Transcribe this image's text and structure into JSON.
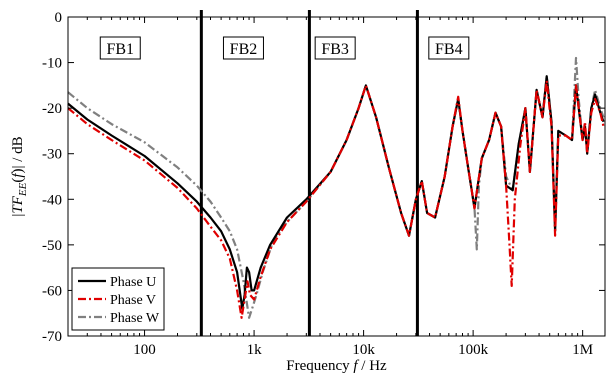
{
  "chart_data": {
    "type": "line",
    "xlabel": "Frequency f / Hz",
    "ylabel": "|TF_EE(f)| / dB",
    "xscale": "log",
    "xlim": [
      20,
      1600000
    ],
    "ylim": [
      -70,
      0
    ],
    "grid": false,
    "legend_position": "bottom-left",
    "xticks": [
      {
        "value": 100,
        "label": "100"
      },
      {
        "value": 1000,
        "label": "1k"
      },
      {
        "value": 10000,
        "label": "10k"
      },
      {
        "value": 100000,
        "label": "100k"
      },
      {
        "value": 1000000,
        "label": "1M"
      }
    ],
    "yticks": [
      {
        "value": 0,
        "label": "0"
      },
      {
        "value": -10,
        "label": "-10"
      },
      {
        "value": -20,
        "label": "-20"
      },
      {
        "value": -30,
        "label": "-30"
      },
      {
        "value": -40,
        "label": "-40"
      },
      {
        "value": -50,
        "label": "-50"
      },
      {
        "value": -60,
        "label": "-60"
      },
      {
        "value": -70,
        "label": "-70"
      }
    ],
    "band_dividers": [
      330,
      3200,
      31000
    ],
    "band_labels": [
      {
        "label": "FB1",
        "x": 60
      },
      {
        "label": "FB2",
        "x": 800
      },
      {
        "label": "FB3",
        "x": 5500
      },
      {
        "label": "FB4",
        "x": 60000
      }
    ],
    "series": [
      {
        "name": "Phase U",
        "color": "#000000",
        "dash": "solid",
        "points": [
          [
            20,
            -19
          ],
          [
            30,
            -22.5
          ],
          [
            50,
            -26
          ],
          [
            100,
            -30.5
          ],
          [
            200,
            -36.5
          ],
          [
            300,
            -40.5
          ],
          [
            400,
            -44
          ],
          [
            500,
            -47
          ],
          [
            600,
            -51
          ],
          [
            700,
            -56
          ],
          [
            780,
            -64
          ],
          [
            820,
            -61
          ],
          [
            860,
            -55
          ],
          [
            900,
            -56
          ],
          [
            950,
            -60
          ],
          [
            1000,
            -60
          ],
          [
            1150,
            -55
          ],
          [
            1400,
            -50
          ],
          [
            2000,
            -44
          ],
          [
            3000,
            -40
          ],
          [
            5000,
            -34
          ],
          [
            7000,
            -27
          ],
          [
            9000,
            -20
          ],
          [
            10500,
            -15
          ],
          [
            13000,
            -22
          ],
          [
            17000,
            -33
          ],
          [
            22000,
            -43
          ],
          [
            26000,
            -48
          ],
          [
            30000,
            -40
          ],
          [
            34000,
            -36
          ],
          [
            38000,
            -43
          ],
          [
            45000,
            -44
          ],
          [
            55000,
            -35
          ],
          [
            65000,
            -24
          ],
          [
            73000,
            -18
          ],
          [
            80000,
            -25
          ],
          [
            90000,
            -33
          ],
          [
            97000,
            -38
          ],
          [
            103000,
            -42
          ],
          [
            110000,
            -37
          ],
          [
            120000,
            -31
          ],
          [
            140000,
            -27
          ],
          [
            160000,
            -21
          ],
          [
            180000,
            -24
          ],
          [
            200000,
            -37
          ],
          [
            230000,
            -38
          ],
          [
            260000,
            -28
          ],
          [
            300000,
            -20
          ],
          [
            330000,
            -34
          ],
          [
            380000,
            -16
          ],
          [
            430000,
            -22
          ],
          [
            470000,
            -13
          ],
          [
            520000,
            -23
          ],
          [
            560000,
            -47
          ],
          [
            600000,
            -25
          ],
          [
            700000,
            -26
          ],
          [
            800000,
            -27
          ],
          [
            870000,
            -15
          ],
          [
            920000,
            -20
          ],
          [
            1000000,
            -27
          ],
          [
            1050000,
            -24
          ],
          [
            1100000,
            -30
          ],
          [
            1200000,
            -20
          ],
          [
            1300000,
            -17
          ],
          [
            1450000,
            -21
          ],
          [
            1550000,
            -23
          ]
        ]
      },
      {
        "name": "Phase V",
        "color": "#e00000",
        "dash": "8,3,2,3",
        "points": [
          [
            20,
            -20
          ],
          [
            30,
            -23.5
          ],
          [
            50,
            -27
          ],
          [
            100,
            -31.5
          ],
          [
            200,
            -37.5
          ],
          [
            300,
            -42
          ],
          [
            400,
            -46
          ],
          [
            500,
            -49
          ],
          [
            600,
            -53
          ],
          [
            700,
            -60
          ],
          [
            770,
            -66
          ],
          [
            820,
            -62
          ],
          [
            870,
            -58
          ],
          [
            920,
            -61
          ],
          [
            1000,
            -62
          ],
          [
            1150,
            -57
          ],
          [
            1400,
            -51
          ],
          [
            2000,
            -45
          ],
          [
            3000,
            -40.5
          ],
          [
            5000,
            -34
          ],
          [
            7000,
            -27
          ],
          [
            9000,
            -20
          ],
          [
            10500,
            -15
          ],
          [
            13000,
            -22
          ],
          [
            17000,
            -33
          ],
          [
            22000,
            -43
          ],
          [
            26000,
            -48
          ],
          [
            30000,
            -40
          ],
          [
            34000,
            -36
          ],
          [
            38000,
            -43
          ],
          [
            45000,
            -44
          ],
          [
            55000,
            -35
          ],
          [
            65000,
            -24
          ],
          [
            73000,
            -17.5
          ],
          [
            80000,
            -25
          ],
          [
            90000,
            -33
          ],
          [
            97000,
            -38
          ],
          [
            103000,
            -42
          ],
          [
            110000,
            -37
          ],
          [
            120000,
            -31
          ],
          [
            140000,
            -27
          ],
          [
            160000,
            -21
          ],
          [
            180000,
            -24
          ],
          [
            200000,
            -37
          ],
          [
            215000,
            -50
          ],
          [
            225000,
            -59
          ],
          [
            240000,
            -40
          ],
          [
            270000,
            -28
          ],
          [
            300000,
            -20
          ],
          [
            330000,
            -34
          ],
          [
            380000,
            -16
          ],
          [
            430000,
            -22
          ],
          [
            470000,
            -14
          ],
          [
            520000,
            -24
          ],
          [
            560000,
            -48
          ],
          [
            600000,
            -26
          ],
          [
            700000,
            -26
          ],
          [
            800000,
            -27
          ],
          [
            870000,
            -15
          ],
          [
            920000,
            -20
          ],
          [
            1000000,
            -27
          ],
          [
            1050000,
            -23
          ],
          [
            1100000,
            -30
          ],
          [
            1200000,
            -21
          ],
          [
            1300000,
            -18
          ],
          [
            1450000,
            -21
          ],
          [
            1550000,
            -24
          ]
        ]
      },
      {
        "name": "Phase W",
        "color": "#808080",
        "dash": "8,3,2,3",
        "points": [
          [
            20,
            -16.5
          ],
          [
            30,
            -20
          ],
          [
            50,
            -23.5
          ],
          [
            100,
            -27.5
          ],
          [
            200,
            -33
          ],
          [
            300,
            -37
          ],
          [
            400,
            -40.5
          ],
          [
            500,
            -44
          ],
          [
            600,
            -47
          ],
          [
            700,
            -51
          ],
          [
            800,
            -58
          ],
          [
            900,
            -66
          ],
          [
            960,
            -64
          ],
          [
            1050,
            -61
          ],
          [
            1200,
            -56
          ],
          [
            1500,
            -49
          ],
          [
            2000,
            -45
          ],
          [
            3000,
            -40.5
          ],
          [
            5000,
            -34
          ],
          [
            7000,
            -27
          ],
          [
            9000,
            -20
          ],
          [
            10500,
            -15
          ],
          [
            13000,
            -22
          ],
          [
            17000,
            -33
          ],
          [
            22000,
            -43
          ],
          [
            26000,
            -48
          ],
          [
            30000,
            -40
          ],
          [
            34000,
            -36
          ],
          [
            38000,
            -43
          ],
          [
            45000,
            -44
          ],
          [
            55000,
            -35
          ],
          [
            65000,
            -24
          ],
          [
            73000,
            -18
          ],
          [
            80000,
            -25
          ],
          [
            90000,
            -33
          ],
          [
            97000,
            -38
          ],
          [
            103000,
            -42
          ],
          [
            108000,
            -51
          ],
          [
            113000,
            -37
          ],
          [
            120000,
            -31
          ],
          [
            140000,
            -27
          ],
          [
            160000,
            -21
          ],
          [
            180000,
            -24
          ],
          [
            200000,
            -35
          ],
          [
            230000,
            -38
          ],
          [
            260000,
            -28
          ],
          [
            300000,
            -20
          ],
          [
            330000,
            -34
          ],
          [
            380000,
            -16
          ],
          [
            430000,
            -22
          ],
          [
            470000,
            -13
          ],
          [
            520000,
            -23
          ],
          [
            560000,
            -46
          ],
          [
            600000,
            -25
          ],
          [
            700000,
            -26
          ],
          [
            800000,
            -27
          ],
          [
            870000,
            -9
          ],
          [
            920000,
            -18
          ],
          [
            1000000,
            -27
          ],
          [
            1050000,
            -24
          ],
          [
            1100000,
            -29
          ],
          [
            1200000,
            -20
          ],
          [
            1300000,
            -16
          ],
          [
            1450000,
            -20
          ],
          [
            1550000,
            -22
          ]
        ]
      }
    ]
  }
}
